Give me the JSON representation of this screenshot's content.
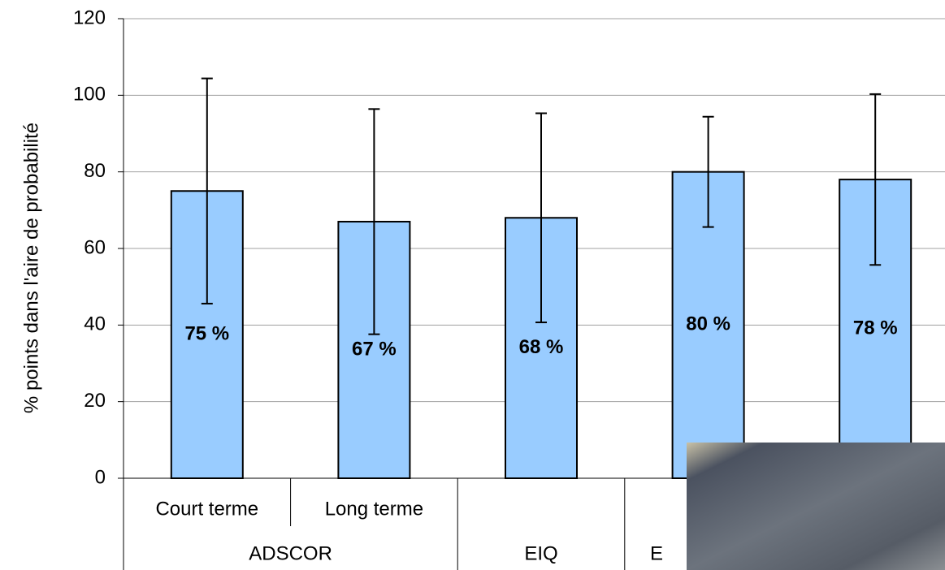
{
  "chart_data": {
    "type": "bar",
    "y_label": "% points dans l'aire de probabilité",
    "categories": [
      "Court terme",
      "Long terme",
      null,
      null,
      null
    ],
    "category_groups": [
      "ADSCOR",
      "ADSCOR",
      "EIQ",
      "E",
      null
    ],
    "values": [
      75,
      67,
      68,
      80,
      78
    ],
    "value_labels": [
      "75 %",
      "67 %",
      "68 %",
      "80 %",
      "78 %"
    ],
    "errors": [
      29.4,
      29.4,
      27.3,
      14.4,
      22.3
    ],
    "color": "#99ccff",
    "ylim": [
      0,
      120
    ],
    "yticks": [
      0,
      20,
      40,
      60,
      80,
      100,
      120
    ],
    "grid": true
  }
}
